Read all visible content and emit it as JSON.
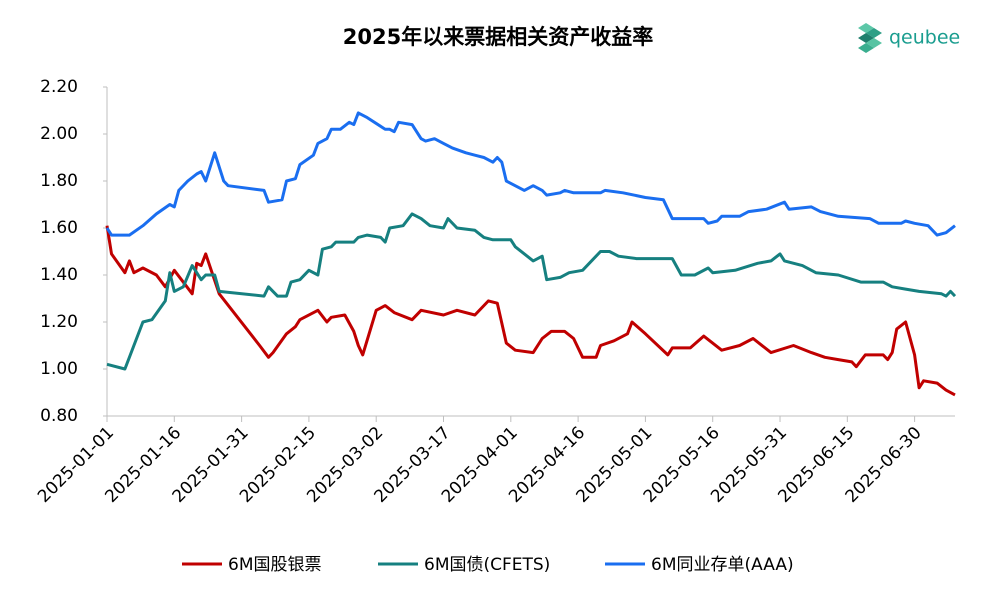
{
  "chart_data": {
    "type": "line",
    "title": "2025年以来票据相关资产收益率",
    "logo": "qeubee",
    "xlim": [
      "2025-01-01",
      "2025-07-09"
    ],
    "xticks": [
      "2025-01-01",
      "2025-01-16",
      "2025-01-31",
      "2025-02-15",
      "2025-03-02",
      "2025-03-17",
      "2025-04-01",
      "2025-04-16",
      "2025-05-01",
      "2025-05-16",
      "2025-05-31",
      "2025-06-15",
      "2025-06-30"
    ],
    "ylim": [
      0.8,
      2.2
    ],
    "yticks": [
      {
        "value": 0.8,
        "label": "0.80"
      },
      {
        "value": 1.0,
        "label": "1.00"
      },
      {
        "value": 1.2,
        "label": "1.20"
      },
      {
        "value": 1.4,
        "label": "1.40"
      },
      {
        "value": 1.6,
        "label": "1.60"
      },
      {
        "value": 1.8,
        "label": "1.80"
      },
      {
        "value": 2.0,
        "label": "2.00"
      },
      {
        "value": 2.2,
        "label": "2.20"
      }
    ],
    "legend": "bottom",
    "series": [
      {
        "name": "6M国股银票",
        "color": "#c00000",
        "x": [
          "2025-01-01",
          "2025-01-02",
          "2025-01-05",
          "2025-01-06",
          "2025-01-07",
          "2025-01-09",
          "2025-01-12",
          "2025-01-14",
          "2025-01-16",
          "2025-01-20",
          "2025-01-21",
          "2025-01-22",
          "2025-01-23",
          "2025-01-26",
          "2025-02-04",
          "2025-02-06",
          "2025-02-07",
          "2025-02-10",
          "2025-02-12",
          "2025-02-13",
          "2025-02-17",
          "2025-02-19",
          "2025-02-20",
          "2025-02-23",
          "2025-02-25",
          "2025-02-26",
          "2025-02-27",
          "2025-03-02",
          "2025-03-04",
          "2025-03-06",
          "2025-03-10",
          "2025-03-12",
          "2025-03-17",
          "2025-03-20",
          "2025-03-24",
          "2025-03-27",
          "2025-03-29",
          "2025-03-31",
          "2025-04-02",
          "2025-04-06",
          "2025-04-08",
          "2025-04-10",
          "2025-04-13",
          "2025-04-15",
          "2025-04-17",
          "2025-04-20",
          "2025-04-21",
          "2025-04-24",
          "2025-04-27",
          "2025-04-28",
          "2025-05-01",
          "2025-05-06",
          "2025-05-07",
          "2025-05-11",
          "2025-05-14",
          "2025-05-18",
          "2025-05-22",
          "2025-05-25",
          "2025-05-29",
          "2025-06-03",
          "2025-06-07",
          "2025-06-10",
          "2025-06-13",
          "2025-06-16",
          "2025-06-17",
          "2025-06-19",
          "2025-06-23",
          "2025-06-24",
          "2025-06-25",
          "2025-06-26",
          "2025-06-28",
          "2025-06-30",
          "2025-07-01",
          "2025-07-02",
          "2025-07-05",
          "2025-07-07",
          "2025-07-09"
        ],
        "values": [
          1.61,
          1.49,
          1.41,
          1.46,
          1.41,
          1.43,
          1.4,
          1.35,
          1.42,
          1.32,
          1.45,
          1.44,
          1.49,
          1.32,
          1.1,
          1.05,
          1.07,
          1.15,
          1.18,
          1.21,
          1.25,
          1.2,
          1.22,
          1.23,
          1.16,
          1.1,
          1.06,
          1.25,
          1.27,
          1.24,
          1.21,
          1.25,
          1.23,
          1.25,
          1.23,
          1.29,
          1.28,
          1.11,
          1.08,
          1.07,
          1.13,
          1.16,
          1.16,
          1.13,
          1.05,
          1.05,
          1.1,
          1.12,
          1.15,
          1.2,
          1.15,
          1.06,
          1.09,
          1.09,
          1.14,
          1.08,
          1.1,
          1.13,
          1.07,
          1.1,
          1.07,
          1.05,
          1.04,
          1.03,
          1.01,
          1.06,
          1.06,
          1.04,
          1.07,
          1.17,
          1.2,
          1.06,
          0.92,
          0.95,
          0.94,
          0.91,
          0.89
        ]
      },
      {
        "name": "6M国债(CFETS)",
        "color": "#168080",
        "x": [
          "2025-01-01",
          "2025-01-05",
          "2025-01-07",
          "2025-01-09",
          "2025-01-11",
          "2025-01-14",
          "2025-01-15",
          "2025-01-16",
          "2025-01-18",
          "2025-01-20",
          "2025-01-22",
          "2025-01-23",
          "2025-01-25",
          "2025-01-26",
          "2025-02-05",
          "2025-02-06",
          "2025-02-08",
          "2025-02-10",
          "2025-02-11",
          "2025-02-13",
          "2025-02-15",
          "2025-02-17",
          "2025-02-18",
          "2025-02-20",
          "2025-02-21",
          "2025-02-25",
          "2025-02-26",
          "2025-02-28",
          "2025-03-03",
          "2025-03-04",
          "2025-03-05",
          "2025-03-08",
          "2025-03-10",
          "2025-03-12",
          "2025-03-14",
          "2025-03-17",
          "2025-03-18",
          "2025-03-20",
          "2025-03-24",
          "2025-03-26",
          "2025-03-28",
          "2025-04-01",
          "2025-04-02",
          "2025-04-06",
          "2025-04-08",
          "2025-04-09",
          "2025-04-12",
          "2025-04-14",
          "2025-04-17",
          "2025-04-21",
          "2025-04-23",
          "2025-04-25",
          "2025-04-29",
          "2025-05-07",
          "2025-05-09",
          "2025-05-12",
          "2025-05-15",
          "2025-05-16",
          "2025-05-21",
          "2025-05-26",
          "2025-05-29",
          "2025-05-31",
          "2025-06-01",
          "2025-06-05",
          "2025-06-08",
          "2025-06-13",
          "2025-06-18",
          "2025-06-23",
          "2025-06-25",
          "2025-06-28",
          "2025-07-01",
          "2025-07-06",
          "2025-07-07",
          "2025-07-08",
          "2025-07-09"
        ],
        "values": [
          1.02,
          1.0,
          1.1,
          1.2,
          1.21,
          1.29,
          1.41,
          1.33,
          1.35,
          1.44,
          1.38,
          1.4,
          1.4,
          1.33,
          1.31,
          1.35,
          1.31,
          1.31,
          1.37,
          1.38,
          1.42,
          1.4,
          1.51,
          1.52,
          1.54,
          1.54,
          1.56,
          1.57,
          1.56,
          1.54,
          1.6,
          1.61,
          1.66,
          1.64,
          1.61,
          1.6,
          1.64,
          1.6,
          1.59,
          1.56,
          1.55,
          1.55,
          1.52,
          1.46,
          1.48,
          1.38,
          1.39,
          1.41,
          1.42,
          1.5,
          1.5,
          1.48,
          1.47,
          1.47,
          1.4,
          1.4,
          1.43,
          1.41,
          1.42,
          1.45,
          1.46,
          1.49,
          1.46,
          1.44,
          1.41,
          1.4,
          1.37,
          1.37,
          1.35,
          1.34,
          1.33,
          1.32,
          1.31,
          1.33,
          1.31
        ]
      },
      {
        "name": "6M同业存单(AAA)",
        "color": "#1a6ef0",
        "x": [
          "2025-01-01",
          "2025-01-02",
          "2025-01-06",
          "2025-01-09",
          "2025-01-12",
          "2025-01-15",
          "2025-01-16",
          "2025-01-17",
          "2025-01-19",
          "2025-01-21",
          "2025-01-22",
          "2025-01-23",
          "2025-01-24",
          "2025-01-25",
          "2025-01-27",
          "2025-01-28",
          "2025-02-05",
          "2025-02-06",
          "2025-02-09",
          "2025-02-10",
          "2025-02-12",
          "2025-02-13",
          "2025-02-16",
          "2025-02-17",
          "2025-02-19",
          "2025-02-20",
          "2025-02-22",
          "2025-02-24",
          "2025-02-25",
          "2025-02-26",
          "2025-02-28",
          "2025-03-04",
          "2025-03-05",
          "2025-03-06",
          "2025-03-07",
          "2025-03-10",
          "2025-03-12",
          "2025-03-13",
          "2025-03-15",
          "2025-03-17",
          "2025-03-19",
          "2025-03-22",
          "2025-03-24",
          "2025-03-26",
          "2025-03-28",
          "2025-03-29",
          "2025-03-30",
          "2025-03-31",
          "2025-04-04",
          "2025-04-06",
          "2025-04-08",
          "2025-04-09",
          "2025-04-12",
          "2025-04-13",
          "2025-04-15",
          "2025-04-21",
          "2025-04-22",
          "2025-04-26",
          "2025-05-01",
          "2025-05-05",
          "2025-05-07",
          "2025-05-14",
          "2025-05-15",
          "2025-05-17",
          "2025-05-18",
          "2025-05-22",
          "2025-05-24",
          "2025-05-28",
          "2025-06-01",
          "2025-06-02",
          "2025-06-07",
          "2025-06-09",
          "2025-06-13",
          "2025-06-20",
          "2025-06-22",
          "2025-06-27",
          "2025-06-28",
          "2025-06-30",
          "2025-07-03",
          "2025-07-05",
          "2025-07-07",
          "2025-07-09"
        ],
        "values": [
          1.6,
          1.57,
          1.57,
          1.61,
          1.66,
          1.7,
          1.69,
          1.76,
          1.8,
          1.83,
          1.84,
          1.8,
          1.86,
          1.92,
          1.8,
          1.78,
          1.76,
          1.71,
          1.72,
          1.8,
          1.81,
          1.87,
          1.91,
          1.96,
          1.98,
          2.02,
          2.02,
          2.05,
          2.04,
          2.09,
          2.07,
          2.02,
          2.02,
          2.01,
          2.05,
          2.04,
          1.98,
          1.97,
          1.98,
          1.96,
          1.94,
          1.92,
          1.91,
          1.9,
          1.88,
          1.9,
          1.88,
          1.8,
          1.76,
          1.78,
          1.76,
          1.74,
          1.75,
          1.76,
          1.75,
          1.75,
          1.76,
          1.75,
          1.73,
          1.72,
          1.64,
          1.64,
          1.62,
          1.63,
          1.65,
          1.65,
          1.67,
          1.68,
          1.71,
          1.68,
          1.69,
          1.67,
          1.65,
          1.64,
          1.62,
          1.62,
          1.63,
          1.62,
          1.61,
          1.57,
          1.58,
          1.61
        ]
      }
    ]
  }
}
